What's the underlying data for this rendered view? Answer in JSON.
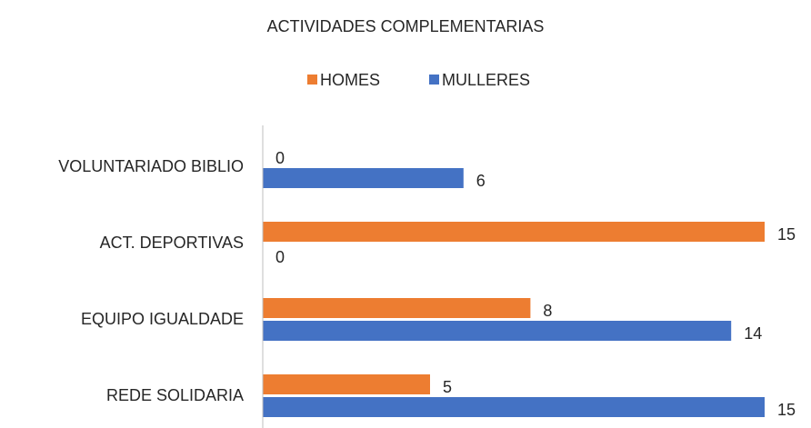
{
  "chart_data": {
    "type": "hbar",
    "title": "ACTIVIDADES COMPLEMENTARIAS",
    "categories": [
      "VOLUNTARIADO BIBLIO",
      "ACT. DEPORTIVAS",
      "EQUIPO IGUALDADE",
      "REDE SOLIDARIA"
    ],
    "series": [
      {
        "name": "HOMES",
        "color": "#ed7d31",
        "values": [
          0,
          15,
          8,
          5
        ]
      },
      {
        "name": "MULLERES",
        "color": "#4472c4",
        "values": [
          6,
          0,
          14,
          15
        ]
      }
    ],
    "xlim": [
      0,
      15
    ],
    "legend": "top"
  }
}
